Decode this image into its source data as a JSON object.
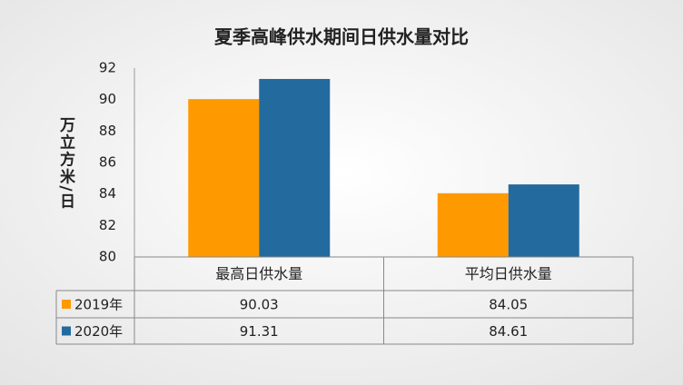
{
  "chart_data": {
    "type": "bar",
    "title": "夏季高峰供水期间日供水量对比",
    "y_label": "万立方米/日",
    "categories": [
      "最高日供水量",
      "平均日供水量"
    ],
    "series": [
      {
        "name": "2019年",
        "color": "#ff9900",
        "values": [
          90.03,
          84.05
        ]
      },
      {
        "name": "2020年",
        "color": "#236a9e",
        "values": [
          91.31,
          84.61
        ]
      }
    ],
    "ylim": [
      80,
      92
    ],
    "yticks": [
      80,
      82,
      84,
      86,
      88,
      90,
      92
    ],
    "grid": false,
    "data_table": true
  }
}
